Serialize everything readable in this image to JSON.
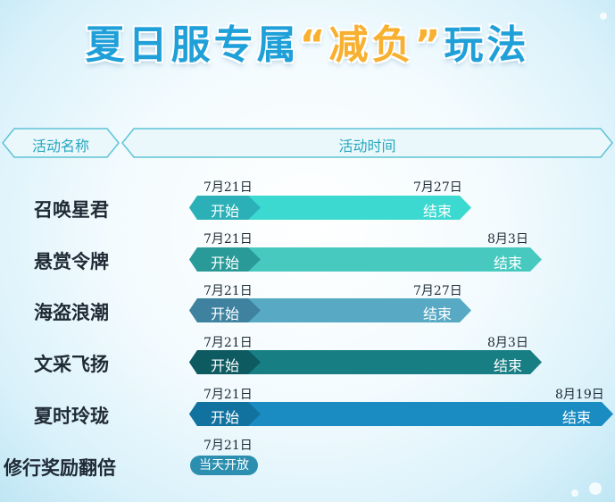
{
  "title": {
    "part1": "夏日服专属",
    "part2": "“减负”",
    "part3": "玩法"
  },
  "headers": {
    "name": "活动名称",
    "time": "活动时间"
  },
  "rows": [
    {
      "name": "召唤星君",
      "start_date": "7月21日",
      "end_date": "7月27日",
      "start_label": "开始",
      "end_label": "结束",
      "color": "#3bd9d0",
      "cap_color": "#2bb0b8"
    },
    {
      "name": "悬赏令牌",
      "start_date": "7月21日",
      "end_date": "8月3日",
      "start_label": "开始",
      "end_label": "结束",
      "color": "#47c9c0",
      "cap_color": "#2a9a99"
    },
    {
      "name": "海盗浪潮",
      "start_date": "7月21日",
      "end_date": "7月27日",
      "start_label": "开始",
      "end_label": "结束",
      "color": "#58a9c4",
      "cap_color": "#3e82a0"
    },
    {
      "name": "文采飞扬",
      "start_date": "7月21日",
      "end_date": "8月3日",
      "start_label": "开始",
      "end_label": "结束",
      "color": "#177e84",
      "cap_color": "#0d5a60"
    },
    {
      "name": "夏时玲珑",
      "start_date": "7月21日",
      "end_date": "8月19日",
      "start_label": "开始",
      "end_label": "结束",
      "color": "#1a8cc2",
      "cap_color": "#12729f"
    }
  ],
  "special_row": {
    "name": "修行奖励翻倍",
    "date": "7月21日",
    "label": "当天开放",
    "color": "#2c8faf"
  },
  "colors": {
    "title": "#1fa0d8",
    "title_highlight": "#f7b030",
    "header_text": "#27a6bf",
    "header_border": "#5ec3d7"
  }
}
